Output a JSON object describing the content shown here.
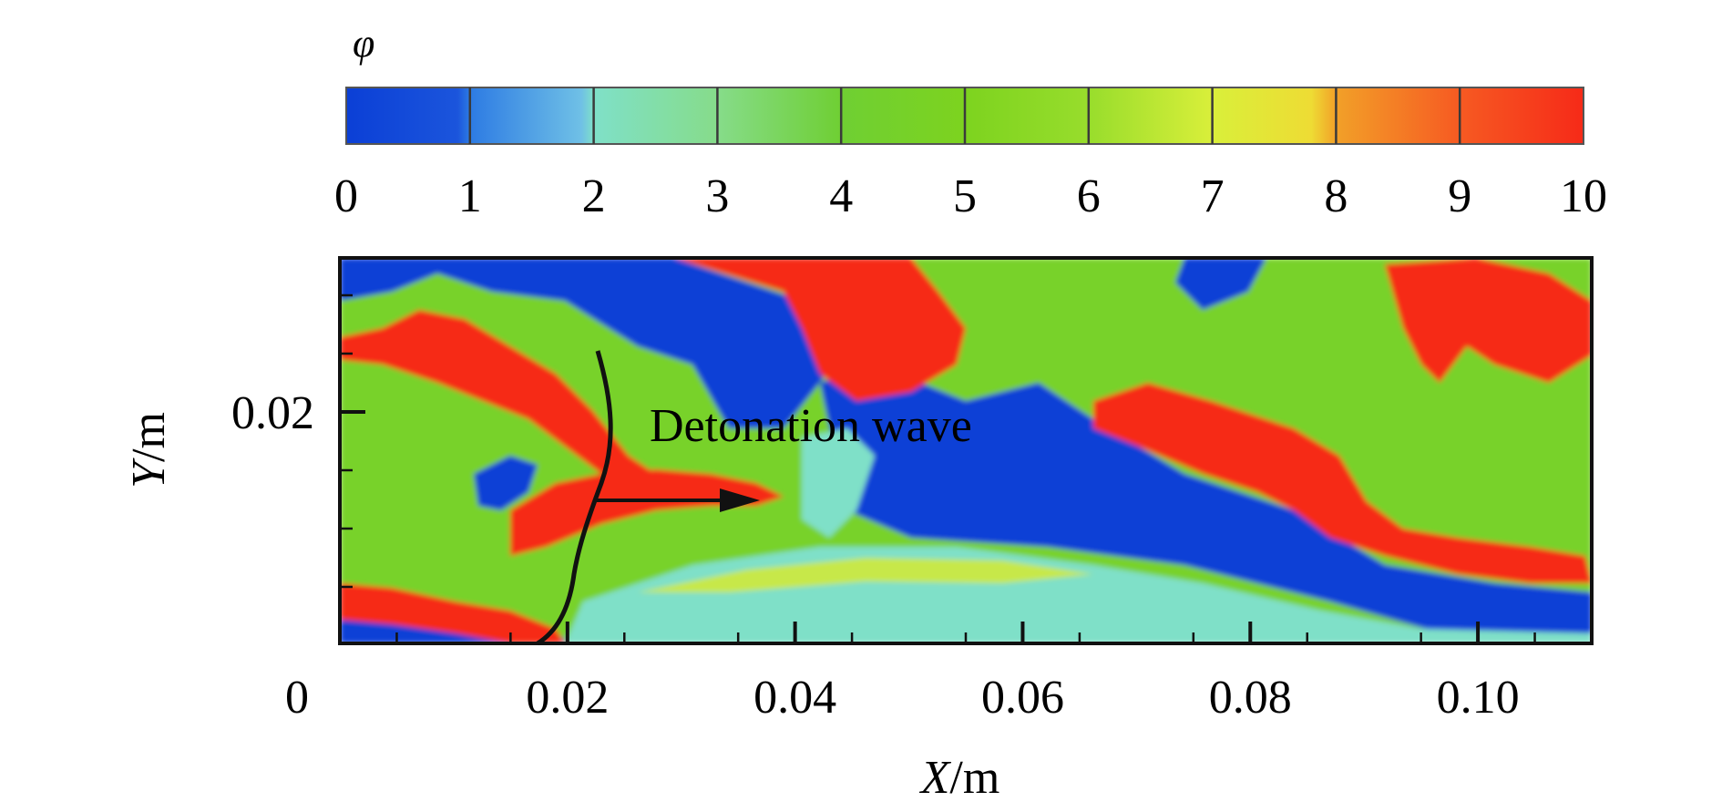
{
  "chart_data": {
    "type": "heatmap",
    "colorbar": {
      "label": "φ",
      "ticks": [
        "0",
        "1",
        "2",
        "3",
        "4",
        "5",
        "6",
        "7",
        "8",
        "9",
        "10"
      ],
      "range": [
        0,
        10
      ],
      "colors": [
        "#0b3fd6",
        "#2d7be3",
        "#7fe0c8",
        "#86dc8a",
        "#6fcf33",
        "#7dd31f",
        "#98dd2c",
        "#d9ef3a",
        "#f2a028",
        "#f65a22",
        "#f62a18"
      ]
    },
    "xlabel_var": "X",
    "xlabel_unit": "/m",
    "ylabel_var": "Y",
    "ylabel_unit": "/m",
    "x_ticks": [
      "0",
      "0.02",
      "0.04",
      "0.06",
      "0.08",
      "0.10"
    ],
    "y_ticks": [
      "0.02"
    ],
    "xlim": [
      0,
      0.11
    ],
    "annotation": "Detonation wave",
    "field_colors": {
      "low": "#0b3fd6",
      "mid": "#78d22a",
      "high": "#f62a18",
      "cyan": "#7fe0c8",
      "yellow": "#e6ef3a"
    }
  }
}
